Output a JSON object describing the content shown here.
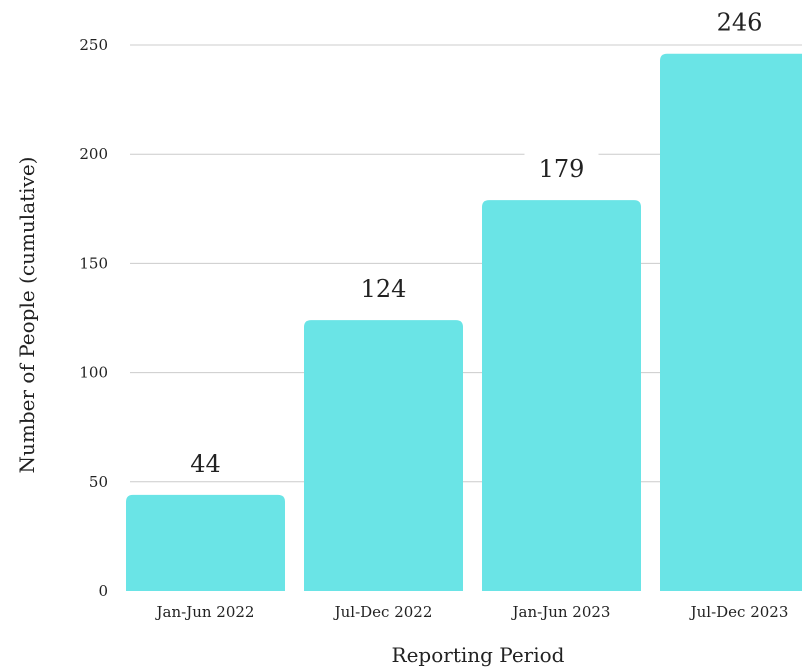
{
  "chart_data": {
    "type": "bar",
    "categories": [
      "Jan-Jun 2022",
      "Jul-Dec 2022",
      "Jan-Jun 2023",
      "Jul-Dec 2023"
    ],
    "values": [
      44,
      124,
      179,
      246
    ],
    "xlabel": "Reporting Period",
    "ylabel": "Number of People (cumulative)",
    "ylim": [
      0,
      250
    ],
    "yticks": [
      0,
      50,
      100,
      150,
      200,
      250
    ],
    "grid": true,
    "bar_color": "#6ae4e6",
    "data_labels": true
  }
}
